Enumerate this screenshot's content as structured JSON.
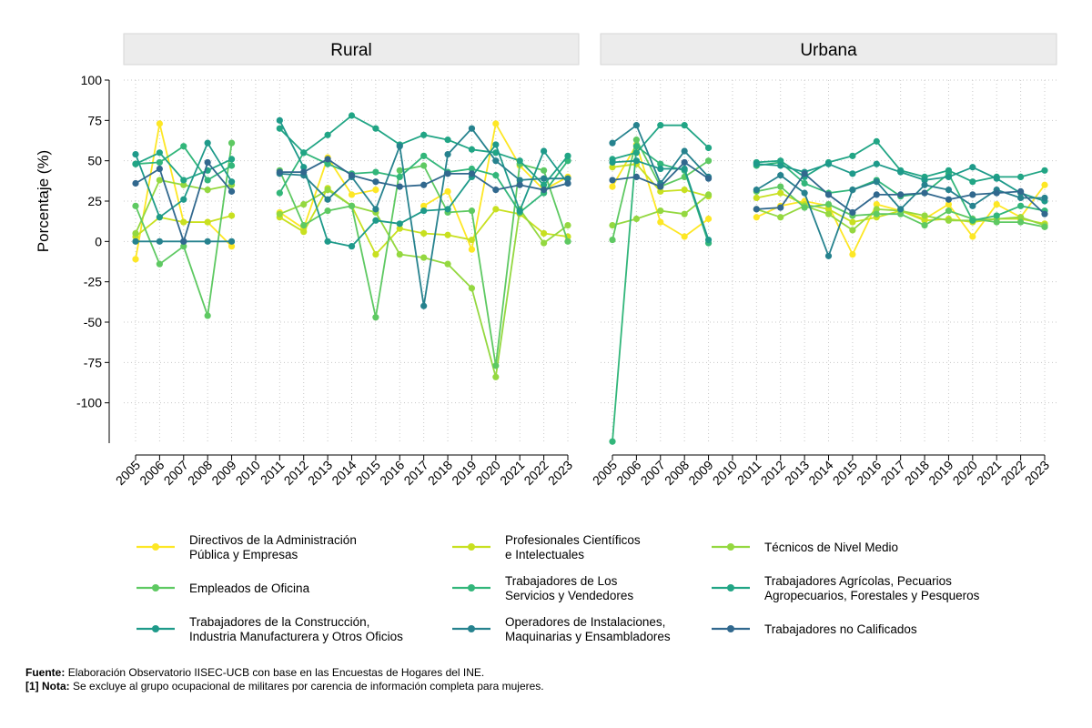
{
  "chart_data": {
    "type": "line",
    "ylabel": "Porcentaje (%)",
    "ylim": [
      -125,
      100
    ],
    "yticks": [
      100,
      75,
      50,
      25,
      0,
      -25,
      -50,
      -75,
      -100
    ],
    "x": [
      "2005",
      "2006",
      "2007",
      "2008",
      "2009",
      "2010",
      "2011",
      "2012",
      "2013",
      "2014",
      "2015",
      "2016",
      "2017",
      "2018",
      "2019",
      "2020",
      "2021",
      "2022",
      "2023"
    ],
    "colors": [
      "#FDE725",
      "#C8E020",
      "#94D840",
      "#5EC962",
      "#32B67A",
      "#21A585",
      "#1E9A8A",
      "#26828E",
      "#31688E"
    ],
    "panels": [
      {
        "title": "Rural",
        "series": [
          {
            "name": "Directivos de la Administración Pública y Empresas",
            "values": [
              -11,
              73,
              12,
              12,
              -3,
              null,
              18,
              8,
              52,
              29,
              32,
              null,
              22,
              31,
              -5,
              73,
              47,
              32,
              40
            ]
          },
          {
            "name": "Profesionales Científicos e Intelectuales",
            "values": [
              3,
              15,
              12,
              12,
              16,
              null,
              15,
              6,
              33,
              22,
              -8,
              8,
              5,
              4,
              1,
              20,
              17,
              5,
              3
            ]
          },
          {
            "name": "Técnicos de Nivel Medio",
            "values": [
              5,
              38,
              35,
              32,
              35,
              null,
              17,
              23,
              32,
              22,
              18,
              -8,
              -10,
              -14,
              -29,
              -84,
              20,
              -1,
              10
            ]
          },
          {
            "name": "Empleados de Oficina",
            "values": [
              22,
              -14,
              -3,
              -46,
              61,
              null,
              44,
              10,
              19,
              22,
              -47,
              44,
              47,
              18,
              19,
              -77,
              48,
              44,
              0
            ]
          },
          {
            "name": "Trabajadores de Los Servicios y Vendedores",
            "values": [
              48,
              49,
              59,
              38,
              47,
              null,
              30,
              55,
              48,
              42,
              43,
              40,
              53,
              43,
              45,
              41,
              18,
              30,
              50
            ]
          },
          {
            "name": "Trabajadores Agrícolas, Pecuarios Agropecuarios, Forestales y Pesqueros",
            "values": [
              48,
              55,
              38,
              44,
              51,
              null,
              70,
              55,
              66,
              78,
              70,
              60,
              66,
              63,
              57,
              55,
              50,
              35,
              53
            ]
          },
          {
            "name": "Trabajadores de la Construcción, Industria Manufacturera y Otros Oficios",
            "values": [
              54,
              15,
              26,
              61,
              37,
              null,
              75,
              46,
              0,
              -3,
              13,
              11,
              19,
              20,
              40,
              60,
              19,
              56,
              36
            ]
          },
          {
            "name": "Operadores de Instalaciones, Maquinarias y Ensambladores",
            "values": [
              0,
              0,
              0,
              0,
              0,
              null,
              42,
              41,
              26,
              40,
              20,
              59,
              -40,
              54,
              70,
              50,
              38,
              39,
              39
            ]
          },
          {
            "name": "Trabajadores no Calificados",
            "values": [
              36,
              45,
              0,
              49,
              31,
              null,
              43,
              43,
              51,
              41,
              37,
              34,
              35,
              42,
              42,
              32,
              35,
              32,
              36
            ]
          }
        ]
      },
      {
        "title": "Urbana",
        "series": [
          {
            "name": "Directivos de la Administración Pública y Empresas",
            "values": [
              34,
              60,
              12,
              3,
              14,
              null,
              15,
              22,
              25,
              22,
              -8,
              23,
              19,
              14,
              23,
              3,
              23,
              15,
              35
            ]
          },
          {
            "name": "Profesionales Científicos e Intelectuales",
            "values": [
              46,
              48,
              31,
              32,
              28,
              null,
              27,
              30,
              23,
              20,
              12,
              15,
              19,
              13,
              14,
              12,
              14,
              14,
              11
            ]
          },
          {
            "name": "Técnicos de Nivel Medio",
            "values": [
              10,
              14,
              19,
              17,
              29,
              null,
              20,
              15,
              22,
              17,
              7,
              20,
              19,
              16,
              13,
              13,
              14,
              15,
              10
            ]
          },
          {
            "name": "Empleados de Oficina",
            "values": [
              1,
              63,
              34,
              40,
              50,
              null,
              31,
              34,
              21,
              23,
              16,
              17,
              17,
              10,
              19,
              14,
              12,
              12,
              9
            ]
          },
          {
            "name": "Trabajadores de Los Servicios y Vendedores",
            "values": [
              -124,
              59,
              48,
              44,
              -1,
              null,
              47,
              49,
              36,
              30,
              32,
              38,
              28,
              30,
              42,
              13,
              16,
              22,
              19
            ]
          },
          {
            "name": "Trabajadores Agrícolas, Pecuarios Agropecuarios, Forestales y Pesqueros",
            "values": [
              51,
              55,
              72,
              72,
              58,
              null,
              49,
              50,
              40,
              49,
              53,
              62,
              44,
              40,
              44,
              37,
              40,
              40,
              44
            ]
          },
          {
            "name": "Trabajadores de la Construcción, Industria Manufacturera y Otros Oficios",
            "values": [
              49,
              50,
              45,
              45,
              1,
              null,
              48,
              47,
              43,
              48,
              42,
              48,
              43,
              38,
              40,
              46,
              39,
              30,
              25
            ]
          },
          {
            "name": "Operadores de Instalaciones, Maquinarias y Ensambladores",
            "values": [
              61,
              72,
              36,
              56,
              40,
              null,
              32,
              41,
              30,
              -9,
              32,
              37,
              20,
              35,
              32,
              22,
              32,
              27,
              27
            ]
          },
          {
            "name": "Trabajadores no Calificados",
            "values": [
              38,
              40,
              34,
              49,
              39,
              null,
              20,
              21,
              42,
              29,
              18,
              29,
              29,
              30,
              26,
              29,
              30,
              31,
              17
            ]
          }
        ]
      }
    ],
    "legend": [
      {
        "line1": "Directivos de la Administración",
        "line2": "Pública y Empresas"
      },
      {
        "line1": "Profesionales Científicos",
        "line2": "e Intelectuales"
      },
      {
        "line1": "Técnicos de Nivel Medio",
        "line2": ""
      },
      {
        "line1": "Empleados de Oficina",
        "line2": ""
      },
      {
        "line1": "Trabajadores de Los",
        "line2": "Servicios y Vendedores"
      },
      {
        "line1": "Trabajadores Agrícolas, Pecuarios",
        "line2": "Agropecuarios, Forestales y Pesqueros"
      },
      {
        "line1": "Trabajadores de la Construcción,",
        "line2": "Industria Manufacturera y Otros Oficios"
      },
      {
        "line1": "Operadores de Instalaciones,",
        "line2": "Maquinarias y Ensambladores"
      },
      {
        "line1": "Trabajadores no Calificados",
        "line2": ""
      }
    ]
  },
  "notes": {
    "source_label": "Fuente:",
    "source_text": "Elaboración Observatorio IISEC-UCB con base en las Encuestas de Hogares del INE.",
    "note_label": "[1] Nota:",
    "note_text": "Se excluye al grupo ocupacional de militares por carencia de información completa para mujeres."
  }
}
